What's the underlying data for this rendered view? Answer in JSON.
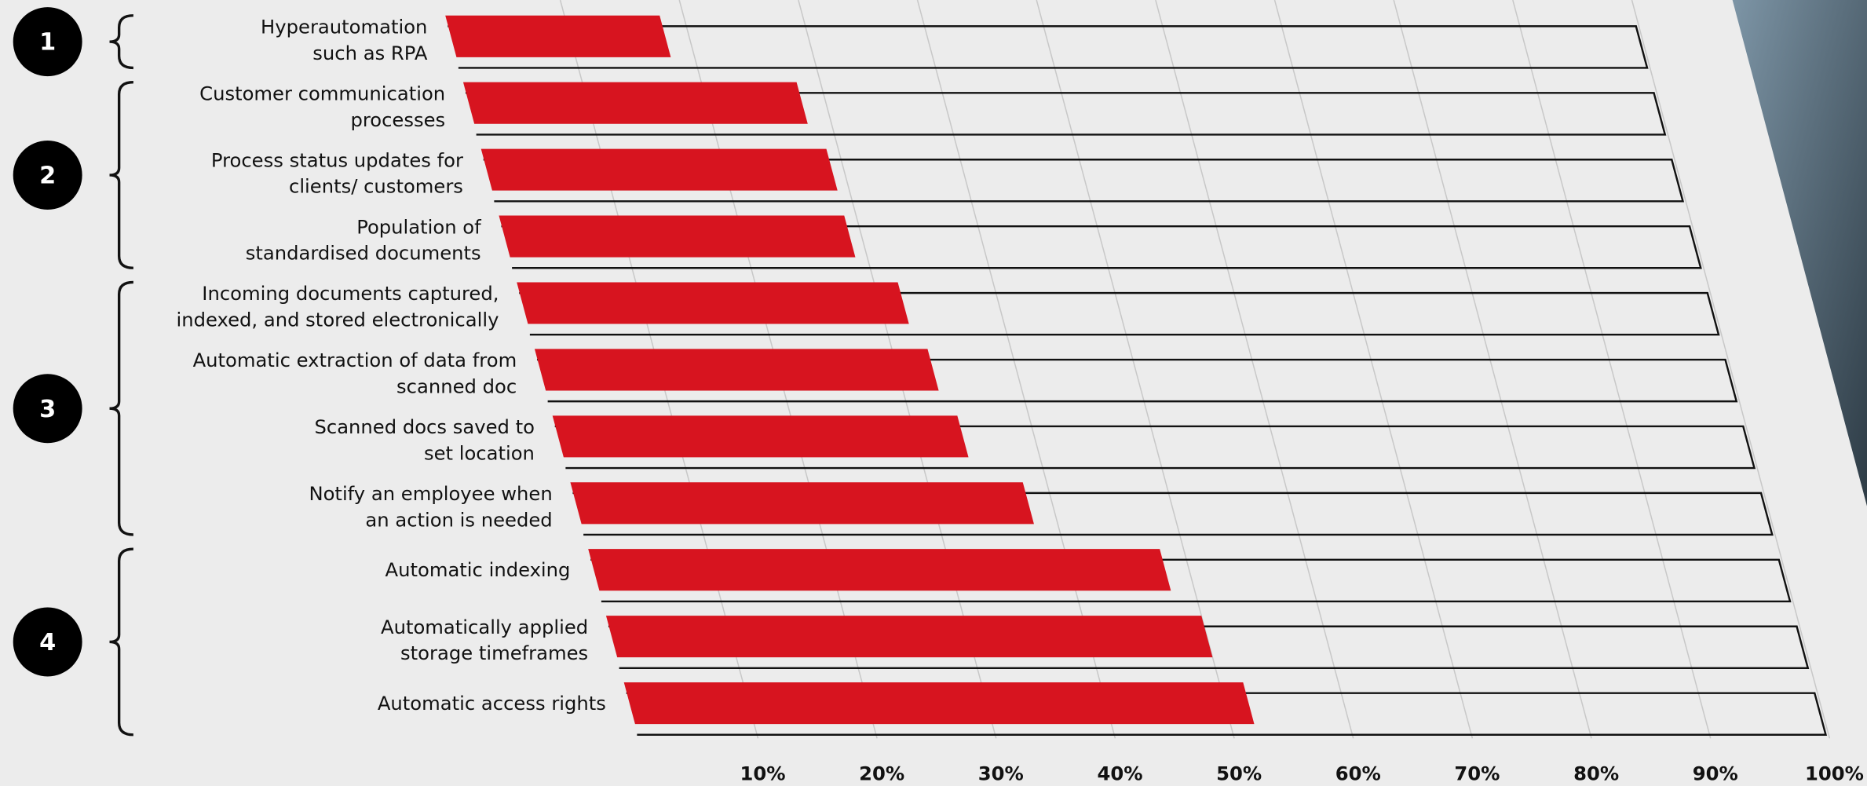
{
  "chart_data": {
    "type": "slanted-bar",
    "categories": [
      [
        "Hyperautomation",
        "such as RPA"
      ],
      [
        "Customer communication",
        "processes"
      ],
      [
        "Process status updates for",
        "clients/ customers"
      ],
      [
        "Population of",
        "standardised documents"
      ],
      [
        "Incoming documents captured,",
        "indexed, and stored electronically"
      ],
      [
        "Automatic extraction of data from",
        "scanned doc"
      ],
      [
        "Scanned docs saved to",
        "set location"
      ],
      [
        "Notify an employee when",
        "an action is needed"
      ],
      [
        "Automatic indexing"
      ],
      [
        "Automatically applied",
        "storage timeframes"
      ],
      [
        "Automatic access rights"
      ]
    ],
    "values": [
      18,
      28,
      29,
      29,
      32,
      33,
      34,
      38,
      48,
      50,
      52
    ],
    "color": "#d7141f",
    "groups": [
      "1",
      "2",
      "3",
      "4"
    ],
    "xlim": [
      0,
      100
    ],
    "xticks": [
      {
        "value": 10,
        "label": "10%"
      },
      {
        "value": 20,
        "label": "20%"
      },
      {
        "value": 30,
        "label": "30%"
      },
      {
        "value": 40,
        "label": "40%"
      },
      {
        "value": 50,
        "label": "50%"
      },
      {
        "value": 60,
        "label": "60%"
      },
      {
        "value": 70,
        "label": "70%"
      },
      {
        "value": 80,
        "label": "80%"
      },
      {
        "value": 90,
        "label": "90%"
      },
      {
        "value": 100,
        "label": "100%"
      }
    ],
    "grid": true
  }
}
